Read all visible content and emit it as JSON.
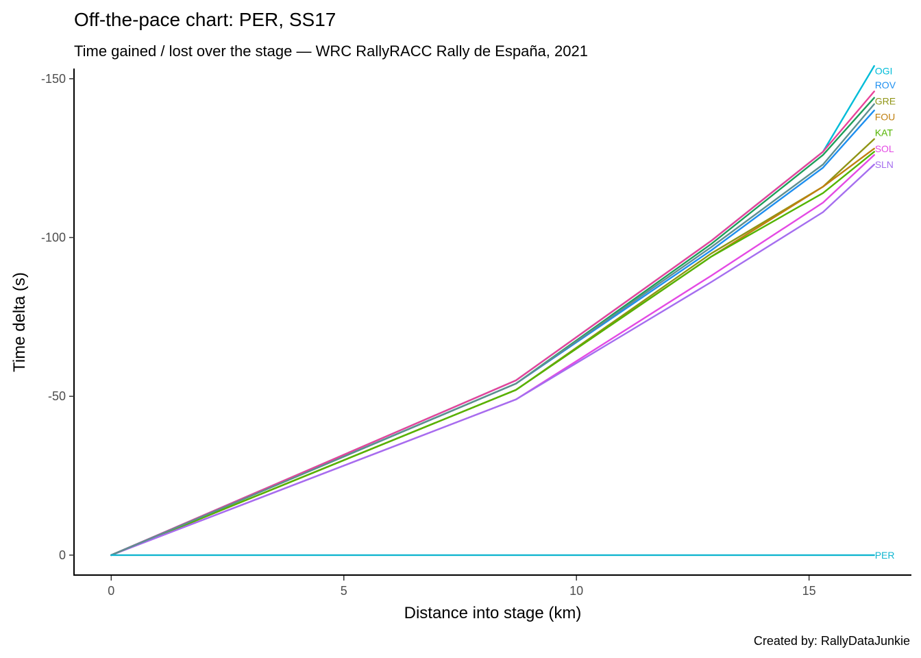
{
  "chart_data": {
    "type": "line",
    "title": "Off-the-pace chart: PER, SS17",
    "subtitle": "Time gained / lost over the stage — WRC RallyRACC Rally de España, 2021",
    "xlabel": "Distance into stage (km)",
    "ylabel": "Time delta (s)",
    "caption": "Created by: RallyDataJunkie",
    "xlim": [
      -0.8,
      17.2
    ],
    "ylim": [
      6.5,
      -154.5
    ],
    "y_reversed": true,
    "grid": false,
    "legend": "none",
    "x_ticks": [
      {
        "value": 0,
        "label": "0"
      },
      {
        "value": 5,
        "label": "5"
      },
      {
        "value": 10,
        "label": "10"
      },
      {
        "value": 15,
        "label": "15"
      }
    ],
    "y_ticks": [
      {
        "value": 0,
        "label": "0"
      },
      {
        "value": -50,
        "label": "-50"
      },
      {
        "value": -100,
        "label": "-100"
      },
      {
        "value": -150,
        "label": "-150"
      }
    ],
    "x": [
      0,
      8.7,
      12.9,
      15.3,
      16.4
    ],
    "series": [
      {
        "name": "OGI",
        "color": "#00bcd8",
        "values": [
          0,
          -55,
          -99,
          -127,
          -154
        ]
      },
      {
        "name": "ROV",
        "color": "#1e8ff0",
        "values": [
          0,
          -54,
          -96,
          -122,
          -140
        ]
      },
      {
        "name": "GRE",
        "color": "#8f9414",
        "values": [
          0,
          -52,
          -95,
          -116,
          -131
        ]
      },
      {
        "name": "FOU",
        "color": "#c08010",
        "values": [
          0,
          -52,
          -94,
          -116,
          -128
        ]
      },
      {
        "name": "KAT",
        "color": "#53b400",
        "values": [
          0,
          -52,
          -94,
          -114,
          -127
        ]
      },
      {
        "name": "SOL",
        "color": "#e44ae4",
        "values": [
          0,
          -49,
          -88,
          -111,
          -126
        ]
      },
      {
        "name": "SLN",
        "color": "#a56eef",
        "values": [
          0,
          -49,
          -86,
          -108,
          -123
        ]
      },
      {
        "name": "",
        "color": "#1f9e5a",
        "values": [
          0,
          -54,
          -98,
          -126,
          -144
        ]
      },
      {
        "name": "",
        "color": "#e9429a",
        "values": [
          0,
          -55,
          -99,
          -127,
          -146
        ]
      },
      {
        "name": "",
        "color": "#5f8f8f",
        "values": [
          0,
          -54,
          -97,
          -123,
          -142
        ]
      },
      {
        "name": "PER",
        "color": "#11b6d0",
        "values": [
          0,
          0,
          0,
          0,
          0
        ]
      }
    ],
    "end_labels": [
      {
        "text": "OGI",
        "color": "#00bcd8",
        "value": -152.5
      },
      {
        "text": "ROV",
        "color": "#1e8ff0",
        "value": -148
      },
      {
        "text": "GRE",
        "color": "#8f9414",
        "value": -143
      },
      {
        "text": "FOU",
        "color": "#c08010",
        "value": -138
      },
      {
        "text": "KAT",
        "color": "#53b400",
        "value": -133
      },
      {
        "text": "SOL",
        "color": "#e44ae4",
        "value": -128
      },
      {
        "text": "SLN",
        "color": "#a56eef",
        "value": -123
      },
      {
        "text": "PER",
        "color": "#11b6d0",
        "value": 0
      }
    ]
  }
}
